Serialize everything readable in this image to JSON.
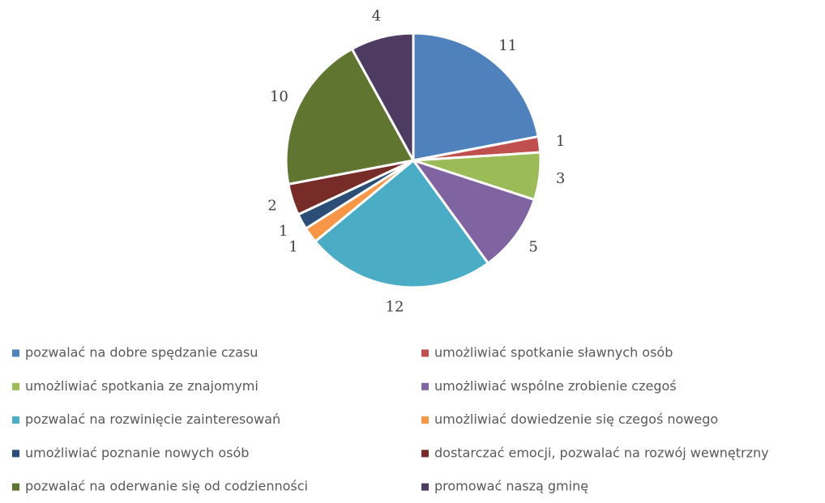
{
  "chart_data": {
    "type": "pie",
    "categories": [
      "pozwalać na dobre spędzanie czasu",
      "umożliwiać spotkanie sławnych osób",
      "umożliwiać spotkania ze znajomymi",
      "umożliwiać wspólne zrobienie czegoś",
      "pozwalać na rozwinięcie zainteresowań",
      "umożliwiać dowiedzenie się czegoś nowego",
      "umożliwiać poznanie nowych osób",
      "dostarczać emocji, pozwalać na rozwój wewnętrzny",
      "pozwalać na oderwanie się od codzienności",
      "promować naszą gminę"
    ],
    "values": [
      11,
      1,
      3,
      5,
      12,
      1,
      1,
      2,
      10,
      4
    ],
    "colors": [
      "#4f81bd",
      "#c0504d",
      "#9bbb59",
      "#8064a2",
      "#4bacc6",
      "#f79646",
      "#2c4d75",
      "#772c2a",
      "#5f7530",
      "#4d3b62"
    ],
    "legend": "bottom"
  }
}
